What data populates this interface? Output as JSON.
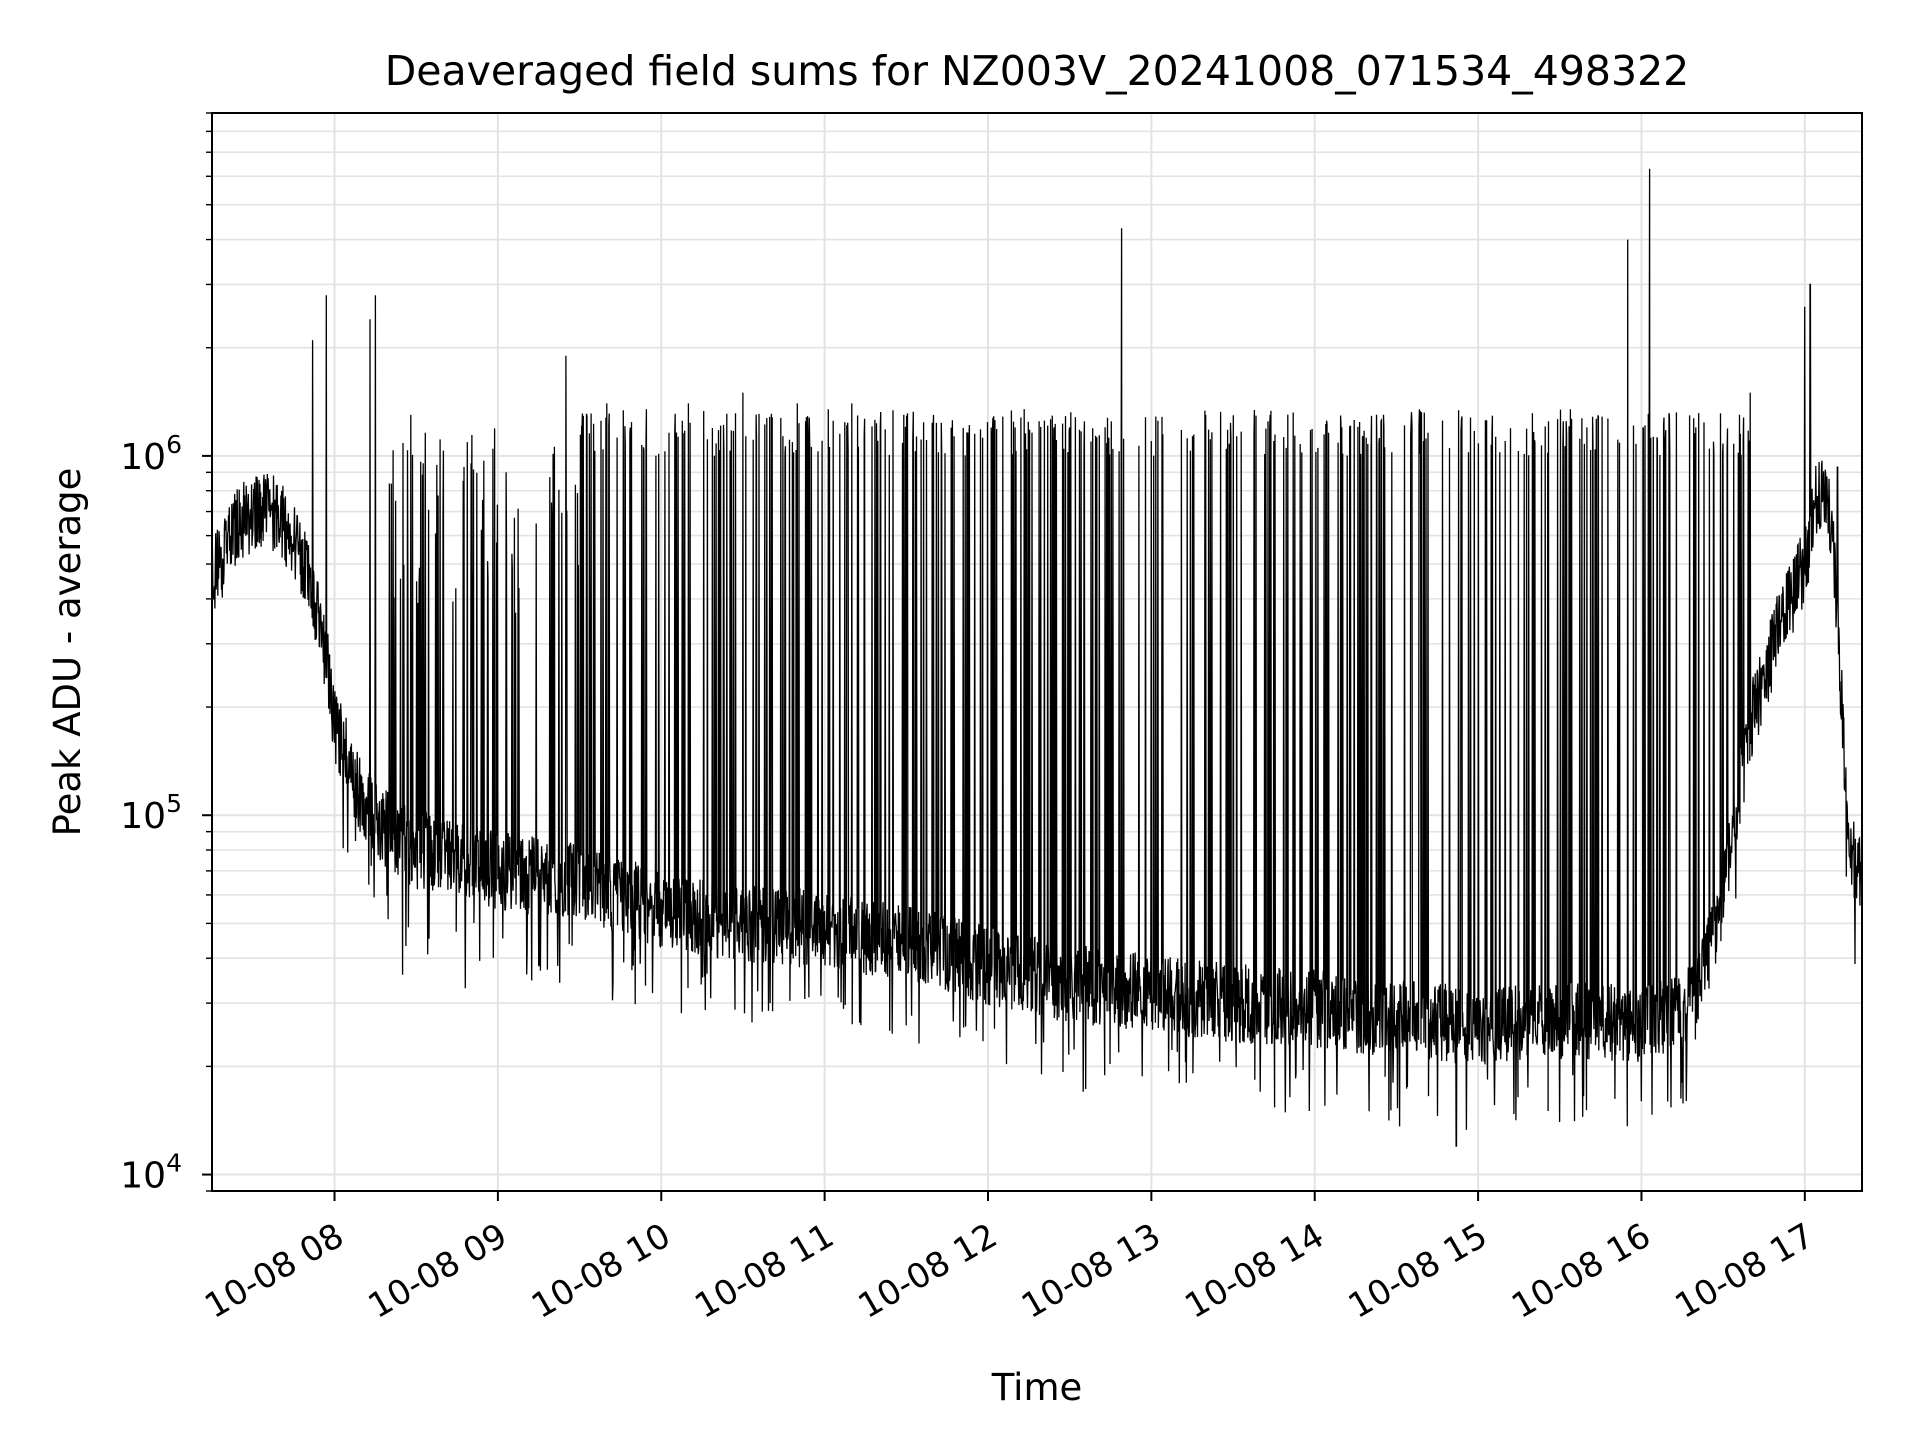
{
  "chart_data": {
    "type": "line",
    "title": "Deaveraged field sums for NZ003V_20241008_071534_498322",
    "xlabel": "Time",
    "ylabel": "Peak ADU - average",
    "x_scale": "time",
    "y_scale": "log",
    "xlim": [
      "2024-10-08 07:15",
      "2024-10-08 17:21"
    ],
    "ylim": [
      9000,
      9000000
    ],
    "x_tick_labels": [
      "10-08 08",
      "10-08 09",
      "10-08 10",
      "10-08 11",
      "10-08 12",
      "10-08 13",
      "10-08 14",
      "10-08 15",
      "10-08 16",
      "10-08 17"
    ],
    "y_tick_labels": [
      {
        "base": "10",
        "exp": "4",
        "value": 10000
      },
      {
        "base": "10",
        "exp": "5",
        "value": 100000
      },
      {
        "base": "10",
        "exp": "6",
        "value": 1000000
      }
    ],
    "grid": true,
    "colors": {
      "line": "#000000",
      "grid": "#e3e3e3",
      "axes": "#000000"
    },
    "series": [
      {
        "baseline": {
          "x": [
            "2024-10-08 07:15",
            "2024-10-08 07:25",
            "2024-10-08 07:35",
            "2024-10-08 07:45",
            "2024-10-08 07:55",
            "2024-10-08 08:00",
            "2024-10-08 08:10",
            "2024-10-08 08:20",
            "2024-10-08 08:30",
            "2024-10-08 08:45",
            "2024-10-08 09:00",
            "2024-10-08 09:30",
            "2024-10-08 10:00",
            "2024-10-08 10:30",
            "2024-10-08 11:00",
            "2024-10-08 11:30",
            "2024-10-08 12:00",
            "2024-10-08 12:30",
            "2024-10-08 13:00",
            "2024-10-08 13:30",
            "2024-10-08 14:00",
            "2024-10-08 14:30",
            "2024-10-08 15:00",
            "2024-10-08 15:30",
            "2024-10-08 16:00",
            "2024-10-08 16:20",
            "2024-10-08 16:30",
            "2024-10-08 16:40",
            "2024-10-08 16:50",
            "2024-10-08 17:00",
            "2024-10-08 17:05",
            "2024-10-08 17:10",
            "2024-10-08 17:13",
            "2024-10-08 17:16",
            "2024-10-08 17:21"
          ],
          "y": [
            450000,
            650000,
            720000,
            600000,
            350000,
            180000,
            110000,
            90000,
            80000,
            78000,
            70000,
            65000,
            55000,
            50000,
            48000,
            44000,
            38000,
            34000,
            32000,
            30000,
            29000,
            27000,
            26000,
            27000,
            26000,
            30000,
            60000,
            180000,
            320000,
            500000,
            800000,
            650000,
            250000,
            80000,
            70000
          ]
        },
        "peaks": {
          "x": [
            "2024-10-08 07:52",
            "2024-10-08 07:57",
            "2024-10-08 08:13",
            "2024-10-08 08:15",
            "2024-10-08 08:28",
            "2024-10-08 09:03",
            "2024-10-08 09:25",
            "2024-10-08 09:40",
            "2024-10-08 10:10",
            "2024-10-08 10:30",
            "2024-10-08 10:50",
            "2024-10-08 11:10",
            "2024-10-08 11:40",
            "2024-10-08 12:10",
            "2024-10-08 12:30",
            "2024-10-08 12:49",
            "2024-10-08 13:00",
            "2024-10-08 13:20",
            "2024-10-08 13:45",
            "2024-10-08 14:10",
            "2024-10-08 14:40",
            "2024-10-08 15:10",
            "2024-10-08 15:40",
            "2024-10-08 15:55",
            "2024-10-08 16:03",
            "2024-10-08 16:20",
            "2024-10-08 16:40",
            "2024-10-08 17:00",
            "2024-10-08 17:02",
            "2024-10-08 17:12"
          ],
          "y": [
            2100000,
            2800000,
            2400000,
            2800000,
            1300000,
            900000,
            1900000,
            1400000,
            1400000,
            1500000,
            1400000,
            1400000,
            1300000,
            1200000,
            1200000,
            4300000,
            1100000,
            1300000,
            1100000,
            1200000,
            1100000,
            1100000,
            1200000,
            4000000,
            6300000,
            1200000,
            1500000,
            2600000,
            3000000,
            930000
          ]
        },
        "dips": {
          "x": [
            "2024-10-08 08:25",
            "2024-10-08 08:48",
            "2024-10-08 09:15",
            "2024-10-08 09:50",
            "2024-10-08 10:40",
            "2024-10-08 11:30",
            "2024-10-08 12:35",
            "2024-10-08 13:40",
            "2024-10-08 14:20",
            "2024-10-08 14:52",
            "2024-10-08 15:30",
            "2024-10-08 16:00",
            "2024-10-08 16:15"
          ],
          "y": [
            36000,
            33000,
            38000,
            42000,
            30000,
            26000,
            17000,
            17000,
            15000,
            12000,
            14000,
            16000,
            18000
          ]
        }
      }
    ]
  }
}
